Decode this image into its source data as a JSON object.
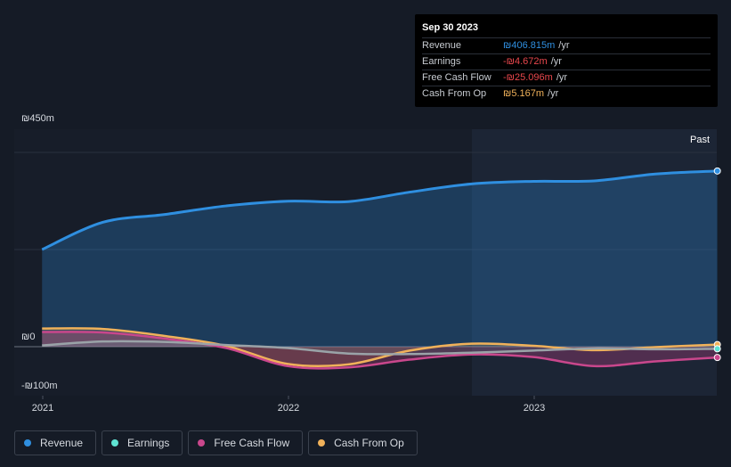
{
  "tooltip": {
    "date": "Sep 30 2023",
    "rows": [
      {
        "label": "Revenue",
        "value": "₪406.815m",
        "unit": "/yr",
        "color": "#2f8fe0"
      },
      {
        "label": "Earnings",
        "value": "-₪4.672m",
        "unit": "/yr",
        "color": "#e8474c"
      },
      {
        "label": "Free Cash Flow",
        "value": "-₪25.096m",
        "unit": "/yr",
        "color": "#e8474c"
      },
      {
        "label": "Cash From Op",
        "value": "₪5.167m",
        "unit": "/yr",
        "color": "#f0b15a"
      }
    ]
  },
  "legend": [
    {
      "label": "Revenue",
      "color": "#2f8fe0"
    },
    {
      "label": "Earnings",
      "color": "#5fe3d3"
    },
    {
      "label": "Free Cash Flow",
      "color": "#c9478c"
    },
    {
      "label": "Cash From Op",
      "color": "#f0b15a"
    }
  ],
  "chart_data": {
    "type": "area",
    "x_ticks": [
      "2021",
      "2022",
      "2023"
    ],
    "y_ticks": [
      "₪450m",
      "₪0",
      "-₪100m"
    ],
    "past_label": "Past",
    "ylim": [
      -100,
      450
    ],
    "x": [
      "2020-12-31",
      "2021-03-31",
      "2021-06-30",
      "2021-09-30",
      "2021-12-31",
      "2022-03-31",
      "2022-06-30",
      "2022-09-30",
      "2022-12-31",
      "2023-03-31",
      "2023-06-30",
      "2023-09-30"
    ],
    "series": [
      {
        "name": "Revenue",
        "color": "#2f8fe0",
        "values": [
          225,
          288,
          306,
          326,
          337,
          336,
          358,
          377,
          383,
          384,
          400,
          407
        ]
      },
      {
        "name": "Earnings",
        "color": "#5fe3d3",
        "values": [
          3,
          12,
          11,
          4,
          -3,
          -16,
          -17,
          -14,
          -9,
          -4,
          -6,
          -5
        ]
      },
      {
        "name": "Free Cash Flow",
        "color": "#c9478c",
        "values": [
          34,
          33,
          19,
          -3,
          -45,
          -48,
          -30,
          -18,
          -24,
          -45,
          -34,
          -25
        ]
      },
      {
        "name": "Cash From Op",
        "color": "#f0b15a",
        "values": [
          42,
          41,
          25,
          2,
          -40,
          -41,
          -9,
          7,
          2,
          -8,
          -1,
          5
        ]
      }
    ]
  }
}
